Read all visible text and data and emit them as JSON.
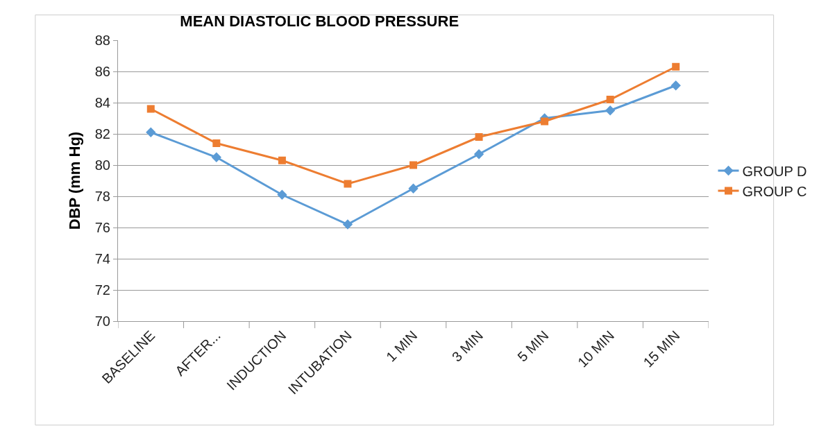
{
  "chart_data": {
    "type": "line",
    "title": "MEAN DIASTOLIC BLOOD PRESSURE",
    "ylabel": "DBP (mm Hg)",
    "categories": [
      "BASELINE",
      "AFTER...",
      "INDUCTION",
      "INTUBATION",
      "1 MIN",
      "3 MIN",
      "5 MIN",
      "10 MIN",
      "15 MIN"
    ],
    "series": [
      {
        "name": "GROUP D",
        "color": "#5b9bd5",
        "marker": "diamond",
        "values": [
          82.1,
          80.5,
          78.1,
          76.2,
          78.5,
          80.7,
          83.0,
          83.5,
          85.1
        ]
      },
      {
        "name": "GROUP C",
        "color": "#ed7d31",
        "marker": "square",
        "values": [
          83.6,
          81.4,
          80.3,
          78.8,
          80.0,
          81.8,
          82.8,
          84.2,
          86.3
        ]
      }
    ],
    "ylim": [
      70,
      88
    ],
    "yticks": [
      70,
      72,
      74,
      76,
      78,
      80,
      82,
      84,
      86,
      88
    ],
    "grid": "y",
    "legend": "right"
  }
}
